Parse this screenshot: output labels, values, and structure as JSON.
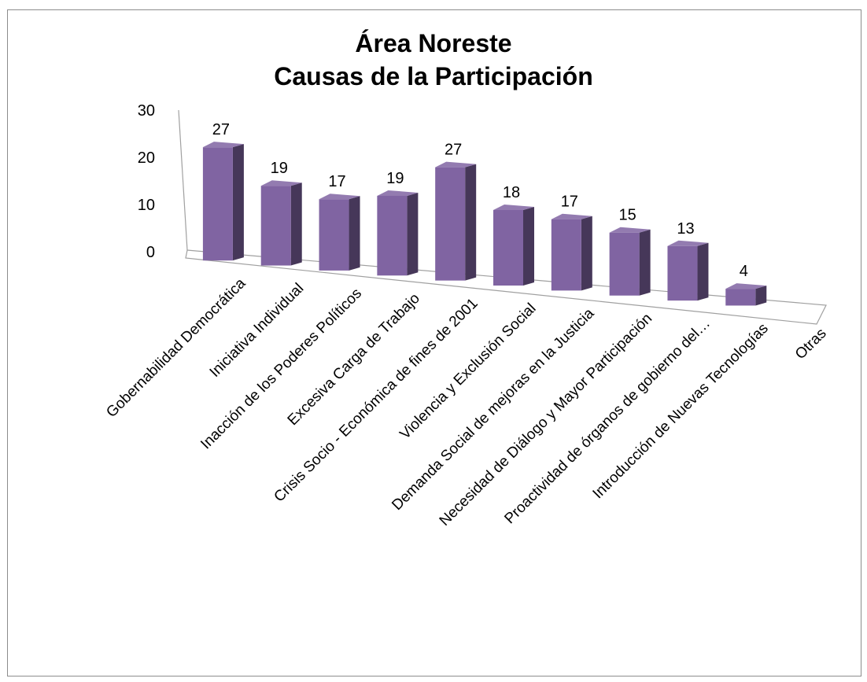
{
  "chart_data": {
    "type": "bar",
    "title_line1": "Área Noreste",
    "title_line2": "Causas de la Participación",
    "xlabel": "",
    "ylabel": "",
    "ylim": [
      0,
      30
    ],
    "yticks": [
      0,
      10,
      20,
      30
    ],
    "categories": [
      "Gobernabilidad Democrática",
      "Iniciativa Individual",
      "Inacción de los Poderes Políticos",
      "Excesiva Carga de Trabajo",
      "Crisis Socio - Económica de fines de 2001",
      "Violencia y Exclusión Social",
      "Demanda Social de mejoras en la Justicia",
      "Necesidad de Diálogo y Mayor Participación",
      "Proactividad de órganos de gobierno del…",
      "Introducción de Nuevas Tecnologías",
      "Otras"
    ],
    "values": [
      27,
      19,
      17,
      19,
      27,
      18,
      17,
      15,
      13,
      4,
      null
    ],
    "data_labels": [
      "27",
      "19",
      "17",
      "19",
      "27",
      "18",
      "17",
      "15",
      "13",
      "4",
      ""
    ],
    "bar_color": "#8064a2",
    "grid": false,
    "legend": "none"
  }
}
